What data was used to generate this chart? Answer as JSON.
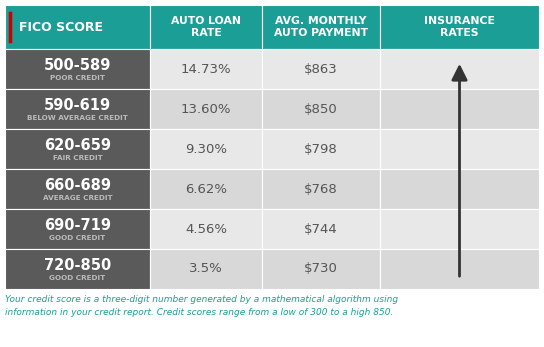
{
  "header_bg": "#1a9e96",
  "header_text_color": "#ffffff",
  "row_label_bg": "#5a5a5a",
  "row_label_text_color": "#ffffff",
  "row_data_bg_odd": "#e8e8e8",
  "row_data_bg_even": "#d8d8d8",
  "footer_text_color": "#1a9e96",
  "col_headers": [
    "FICO SCORE",
    "AUTO LOAN\nRATE",
    "AVG. MONTHLY\nAUTO PAYMENT",
    "INSURANCE\nRATES"
  ],
  "rows": [
    {
      "score": "500-589",
      "label": "POOR CREDIT",
      "rate": "14.73%",
      "payment": "$863"
    },
    {
      "score": "590-619",
      "label": "BELOW AVERAGE CREDIT",
      "rate": "13.60%",
      "payment": "$850"
    },
    {
      "score": "620-659",
      "label": "FAIR CREDIT",
      "rate": "9.30%",
      "payment": "$798"
    },
    {
      "score": "660-689",
      "label": "AVERAGE CREDIT",
      "rate": "6.62%",
      "payment": "$768"
    },
    {
      "score": "690-719",
      "label": "GOOD CREDIT",
      "rate": "4.56%",
      "payment": "$744"
    },
    {
      "score": "720-850",
      "label": "GOOD CREDIT",
      "rate": "3.5%",
      "payment": "$730"
    }
  ],
  "footer": "Your credit score is a three-digit number generated by a mathematical algorithm using\ninformation in your credit report. Credit scores range from a low of 300 to a high 850.",
  "fico_red_accent": "#cc0000"
}
